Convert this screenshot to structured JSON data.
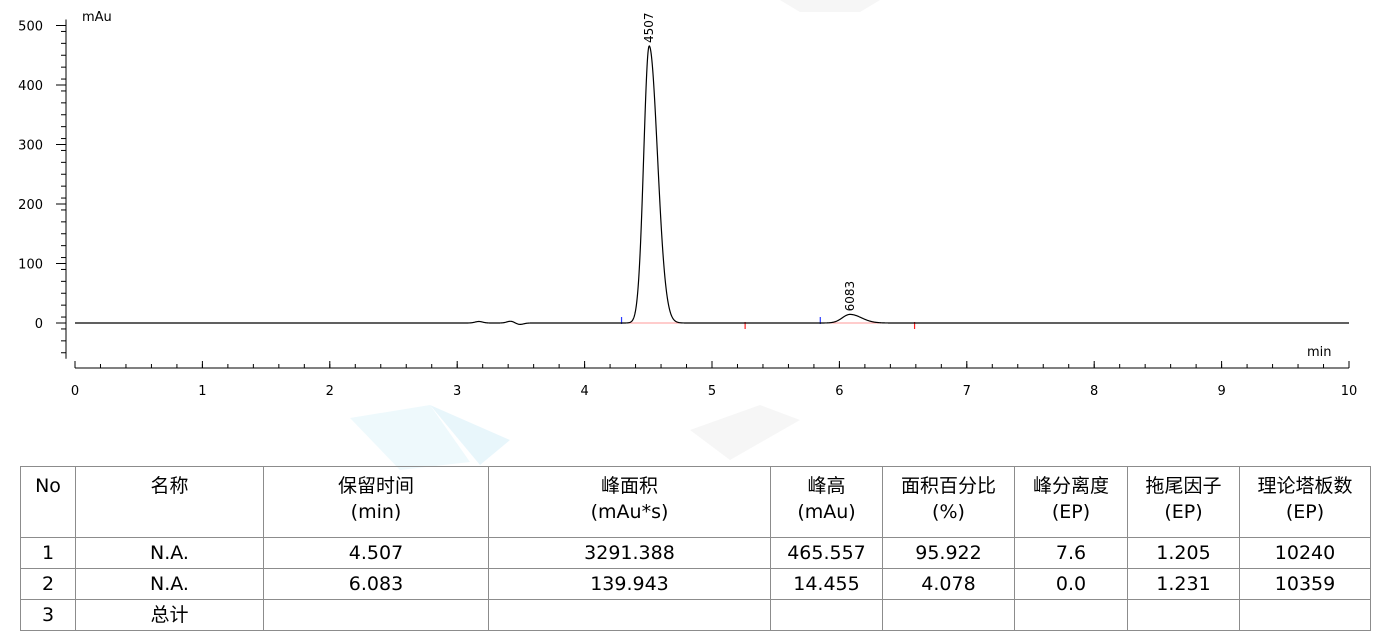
{
  "chart_data": {
    "type": "line",
    "ylabel": "mAu",
    "xlabel": "min",
    "xlim": [
      0,
      10
    ],
    "ylim": [
      -60,
      510
    ],
    "x_ticks": [
      0,
      1,
      2,
      3,
      4,
      5,
      6,
      7,
      8,
      9,
      10
    ],
    "y_ticks": [
      0,
      100,
      200,
      300,
      400,
      500
    ],
    "grid": false,
    "line_color": "#000000",
    "baseline_color": "#ff9999",
    "peaks": [
      {
        "label": "4507",
        "rt": 4.507,
        "height": 465.557,
        "start": 4.29,
        "end": 5.26
      },
      {
        "label": "6083",
        "rt": 6.083,
        "height": 14.455,
        "start": 5.85,
        "end": 6.59
      }
    ],
    "minor_features": [
      {
        "rt": 3.17,
        "height": 2.5
      },
      {
        "rt": 3.42,
        "height": 3.0
      },
      {
        "rt": 3.49,
        "height": -2.5
      }
    ]
  },
  "table": {
    "headers": [
      {
        "line1": "No",
        "line2": ""
      },
      {
        "line1": "名称",
        "line2": ""
      },
      {
        "line1": "保留时间",
        "line2": "(min)"
      },
      {
        "line1": "峰面积",
        "line2": "(mAu*s)"
      },
      {
        "line1": "峰高",
        "line2": "(mAu)"
      },
      {
        "line1": "面积百分比",
        "line2": "(%)"
      },
      {
        "line1": "峰分离度",
        "line2": "(EP)"
      },
      {
        "line1": "拖尾因子",
        "line2": "(EP)"
      },
      {
        "line1": "理论塔板数",
        "line2": "(EP)"
      }
    ],
    "rows": [
      [
        "1",
        "N.A.",
        "4.507",
        "3291.388",
        "465.557",
        "95.922",
        "7.6",
        "1.205",
        "10240"
      ],
      [
        "2",
        "N.A.",
        "6.083",
        "139.943",
        "14.455",
        "4.078",
        "0.0",
        "1.231",
        "10359"
      ],
      [
        "3",
        "总计",
        "",
        "",
        "",
        "",
        "",
        "",
        ""
      ]
    ]
  }
}
